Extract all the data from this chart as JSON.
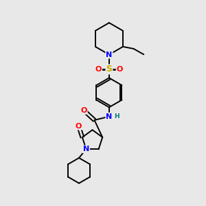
{
  "bg_color": "#e8e8e8",
  "atom_colors": {
    "N": "#0000ff",
    "O": "#ff0000",
    "S": "#ccaa00",
    "H": "#007777",
    "C": "#000000"
  },
  "bond_color": "#000000",
  "bond_width": 1.4,
  "font_size_atom": 8,
  "font_size_small": 6.5
}
